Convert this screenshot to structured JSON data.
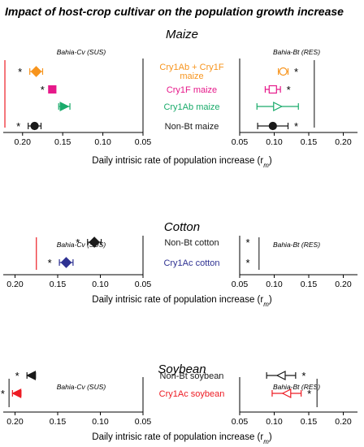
{
  "figure_title": "Impact of host-crop cultivar on the population growth increase",
  "colors": {
    "cry1ab_cry1f": "#f7941d",
    "cry1f": "#e6198a",
    "cry1ab": "#1aab6b",
    "nonbt": "#1a1a1a",
    "cry1ac_cotton": "#2e3192",
    "cry1ac_soy": "#ed1c24",
    "ref_line_red": "#ed1c24",
    "ref_line_black": "#333333"
  },
  "chart_data": [
    {
      "type": "scatter",
      "title": "Maize",
      "xlabel": "Daily intrisic rate of population increase (r",
      "xlabel_sub": "m",
      "xlabel_close": ")",
      "panels": [
        {
          "subtitle": "Bahia-Cv (SUS)",
          "xlim": [
            0.22,
            0.05
          ],
          "ticks": [
            "0.20",
            "0.15",
            "0.10",
            "0.05"
          ],
          "tick_values": [
            0.2,
            0.15,
            0.1,
            0.05
          ],
          "ref_line": {
            "x": 0.222,
            "color": "#ed1c24"
          },
          "points": [
            {
              "series": "cry1ab_cry1f",
              "x": 0.183,
              "err": 0.008,
              "marker": "diamond",
              "filled": true,
              "sig": "*"
            },
            {
              "series": "cry1f",
              "x": 0.163,
              "err": 0.0,
              "marker": "square",
              "filled": true,
              "sig": "*"
            },
            {
              "series": "cry1ab",
              "x": 0.148,
              "err": 0.007,
              "marker": "triangle-right",
              "filled": true,
              "sig": ""
            },
            {
              "series": "nonbt",
              "x": 0.185,
              "err": 0.008,
              "marker": "circle",
              "filled": true,
              "sig": "*"
            }
          ]
        },
        {
          "subtitle": "Bahia-Bt (RES)",
          "xlim": [
            0.05,
            0.21
          ],
          "ticks": [
            "0.05",
            "0.10",
            "0.15",
            "0.20"
          ],
          "tick_values": [
            0.05,
            0.1,
            0.15,
            0.2
          ],
          "ref_line": {
            "x": 0.158,
            "color": "#333333"
          },
          "points": [
            {
              "series": "cry1ab_cry1f",
              "x": 0.113,
              "err": 0.007,
              "marker": "circle",
              "filled": false,
              "sig": "*"
            },
            {
              "series": "cry1f",
              "x": 0.098,
              "err": 0.011,
              "marker": "square",
              "filled": false,
              "sig": "*"
            },
            {
              "series": "cry1ab",
              "x": 0.105,
              "err": 0.03,
              "marker": "triangle-right",
              "filled": false,
              "sig": ""
            },
            {
              "series": "nonbt",
              "x": 0.098,
              "err": 0.022,
              "marker": "circle",
              "filled": true,
              "sig": "*"
            }
          ]
        }
      ],
      "row_labels": [
        {
          "series": "cry1ab_cry1f",
          "lines": [
            "Cry1Ab + Cry1F",
            "maize"
          ]
        },
        {
          "series": "cry1f",
          "lines": [
            "Cry1F maize"
          ]
        },
        {
          "series": "cry1ab",
          "lines": [
            "Cry1Ab maize"
          ]
        },
        {
          "series": "nonbt",
          "lines": [
            "Non-Bt maize"
          ]
        }
      ]
    },
    {
      "type": "scatter",
      "title": "Cotton",
      "xlabel": "Daily intrisic rate of population increase (r",
      "xlabel_sub": "m",
      "xlabel_close": ")",
      "panels": [
        {
          "subtitle": "Bahia-Cv (SUS)",
          "xlim": [
            0.21,
            0.05
          ],
          "ticks": [
            "0.20",
            "0.15",
            "0.10",
            "0.05"
          ],
          "tick_values": [
            0.2,
            0.15,
            0.1,
            0.05
          ],
          "ref_line": {
            "x": 0.175,
            "color": "#ed1c24"
          },
          "points": [
            {
              "series": "nonbt",
              "x": 0.107,
              "err": 0.008,
              "marker": "diamond",
              "filled": true,
              "sig": "*"
            },
            {
              "series": "cry1ac_cotton",
              "x": 0.14,
              "err": 0.008,
              "marker": "diamond",
              "filled": true,
              "sig": "*"
            }
          ]
        },
        {
          "subtitle": "Bahia-Bt (RES)",
          "xlim": [
            0.05,
            0.21
          ],
          "ticks": [
            "0.05",
            "0.10",
            "0.15",
            "0.20"
          ],
          "tick_values": [
            0.05,
            0.1,
            0.15,
            0.2
          ],
          "ref_line": {
            "x": 0.078,
            "color": "#333333"
          },
          "points": [
            {
              "series": "nonbt",
              "x": 0.052,
              "err": 0.0,
              "marker": "none",
              "filled": false,
              "sig": "*"
            },
            {
              "series": "cry1ac_cotton",
              "x": 0.052,
              "err": 0.0,
              "marker": "none",
              "filled": false,
              "sig": "*"
            }
          ]
        }
      ],
      "row_labels": [
        {
          "series": "nonbt",
          "lines": [
            "Non-Bt cotton"
          ]
        },
        {
          "series": "cry1ac_cotton",
          "lines": [
            "Cry1Ac cotton"
          ]
        }
      ]
    },
    {
      "type": "scatter",
      "title": "Soybean",
      "xlabel": "Daily intrisic rate of population increase (r",
      "xlabel_sub": "m",
      "xlabel_close": ")",
      "panels": [
        {
          "subtitle": "Bahia-Cv (SUS)",
          "xlim": [
            0.21,
            0.05
          ],
          "ticks": [
            "0.20",
            "0.15",
            "0.10",
            "0.05"
          ],
          "tick_values": [
            0.2,
            0.15,
            0.1,
            0.05
          ],
          "ref_line": {
            "x": 0.207,
            "color": "#333333"
          },
          "points": [
            {
              "series": "nonbt",
              "x": 0.181,
              "err": 0.005,
              "marker": "triangle-left",
              "filled": true,
              "sig": "*"
            },
            {
              "series": "cry1ac_soy",
              "x": 0.198,
              "err": 0.005,
              "marker": "triangle-left",
              "filled": true,
              "sig": "*"
            }
          ]
        },
        {
          "subtitle": "Bahia-Bt (RES)",
          "xlim": [
            0.05,
            0.21
          ],
          "ticks": [
            "0.05",
            "0.10",
            "0.15",
            "0.20"
          ],
          "tick_values": [
            0.05,
            0.1,
            0.15,
            0.2
          ],
          "ref_line": {
            "x": 0.162,
            "color": "#333333"
          },
          "points": [
            {
              "series": "nonbt",
              "x": 0.11,
              "err": 0.021,
              "marker": "triangle-left",
              "filled": false,
              "sig": "*"
            },
            {
              "series": "cry1ac_soy",
              "x": 0.118,
              "err": 0.021,
              "marker": "triangle-left",
              "filled": false,
              "sig": "*"
            }
          ]
        }
      ],
      "row_labels": [
        {
          "series": "nonbt",
          "lines": [
            "Non-Bt soybean"
          ]
        },
        {
          "series": "cry1ac_soy",
          "lines": [
            "Cry1Ac soybean"
          ]
        }
      ]
    }
  ]
}
